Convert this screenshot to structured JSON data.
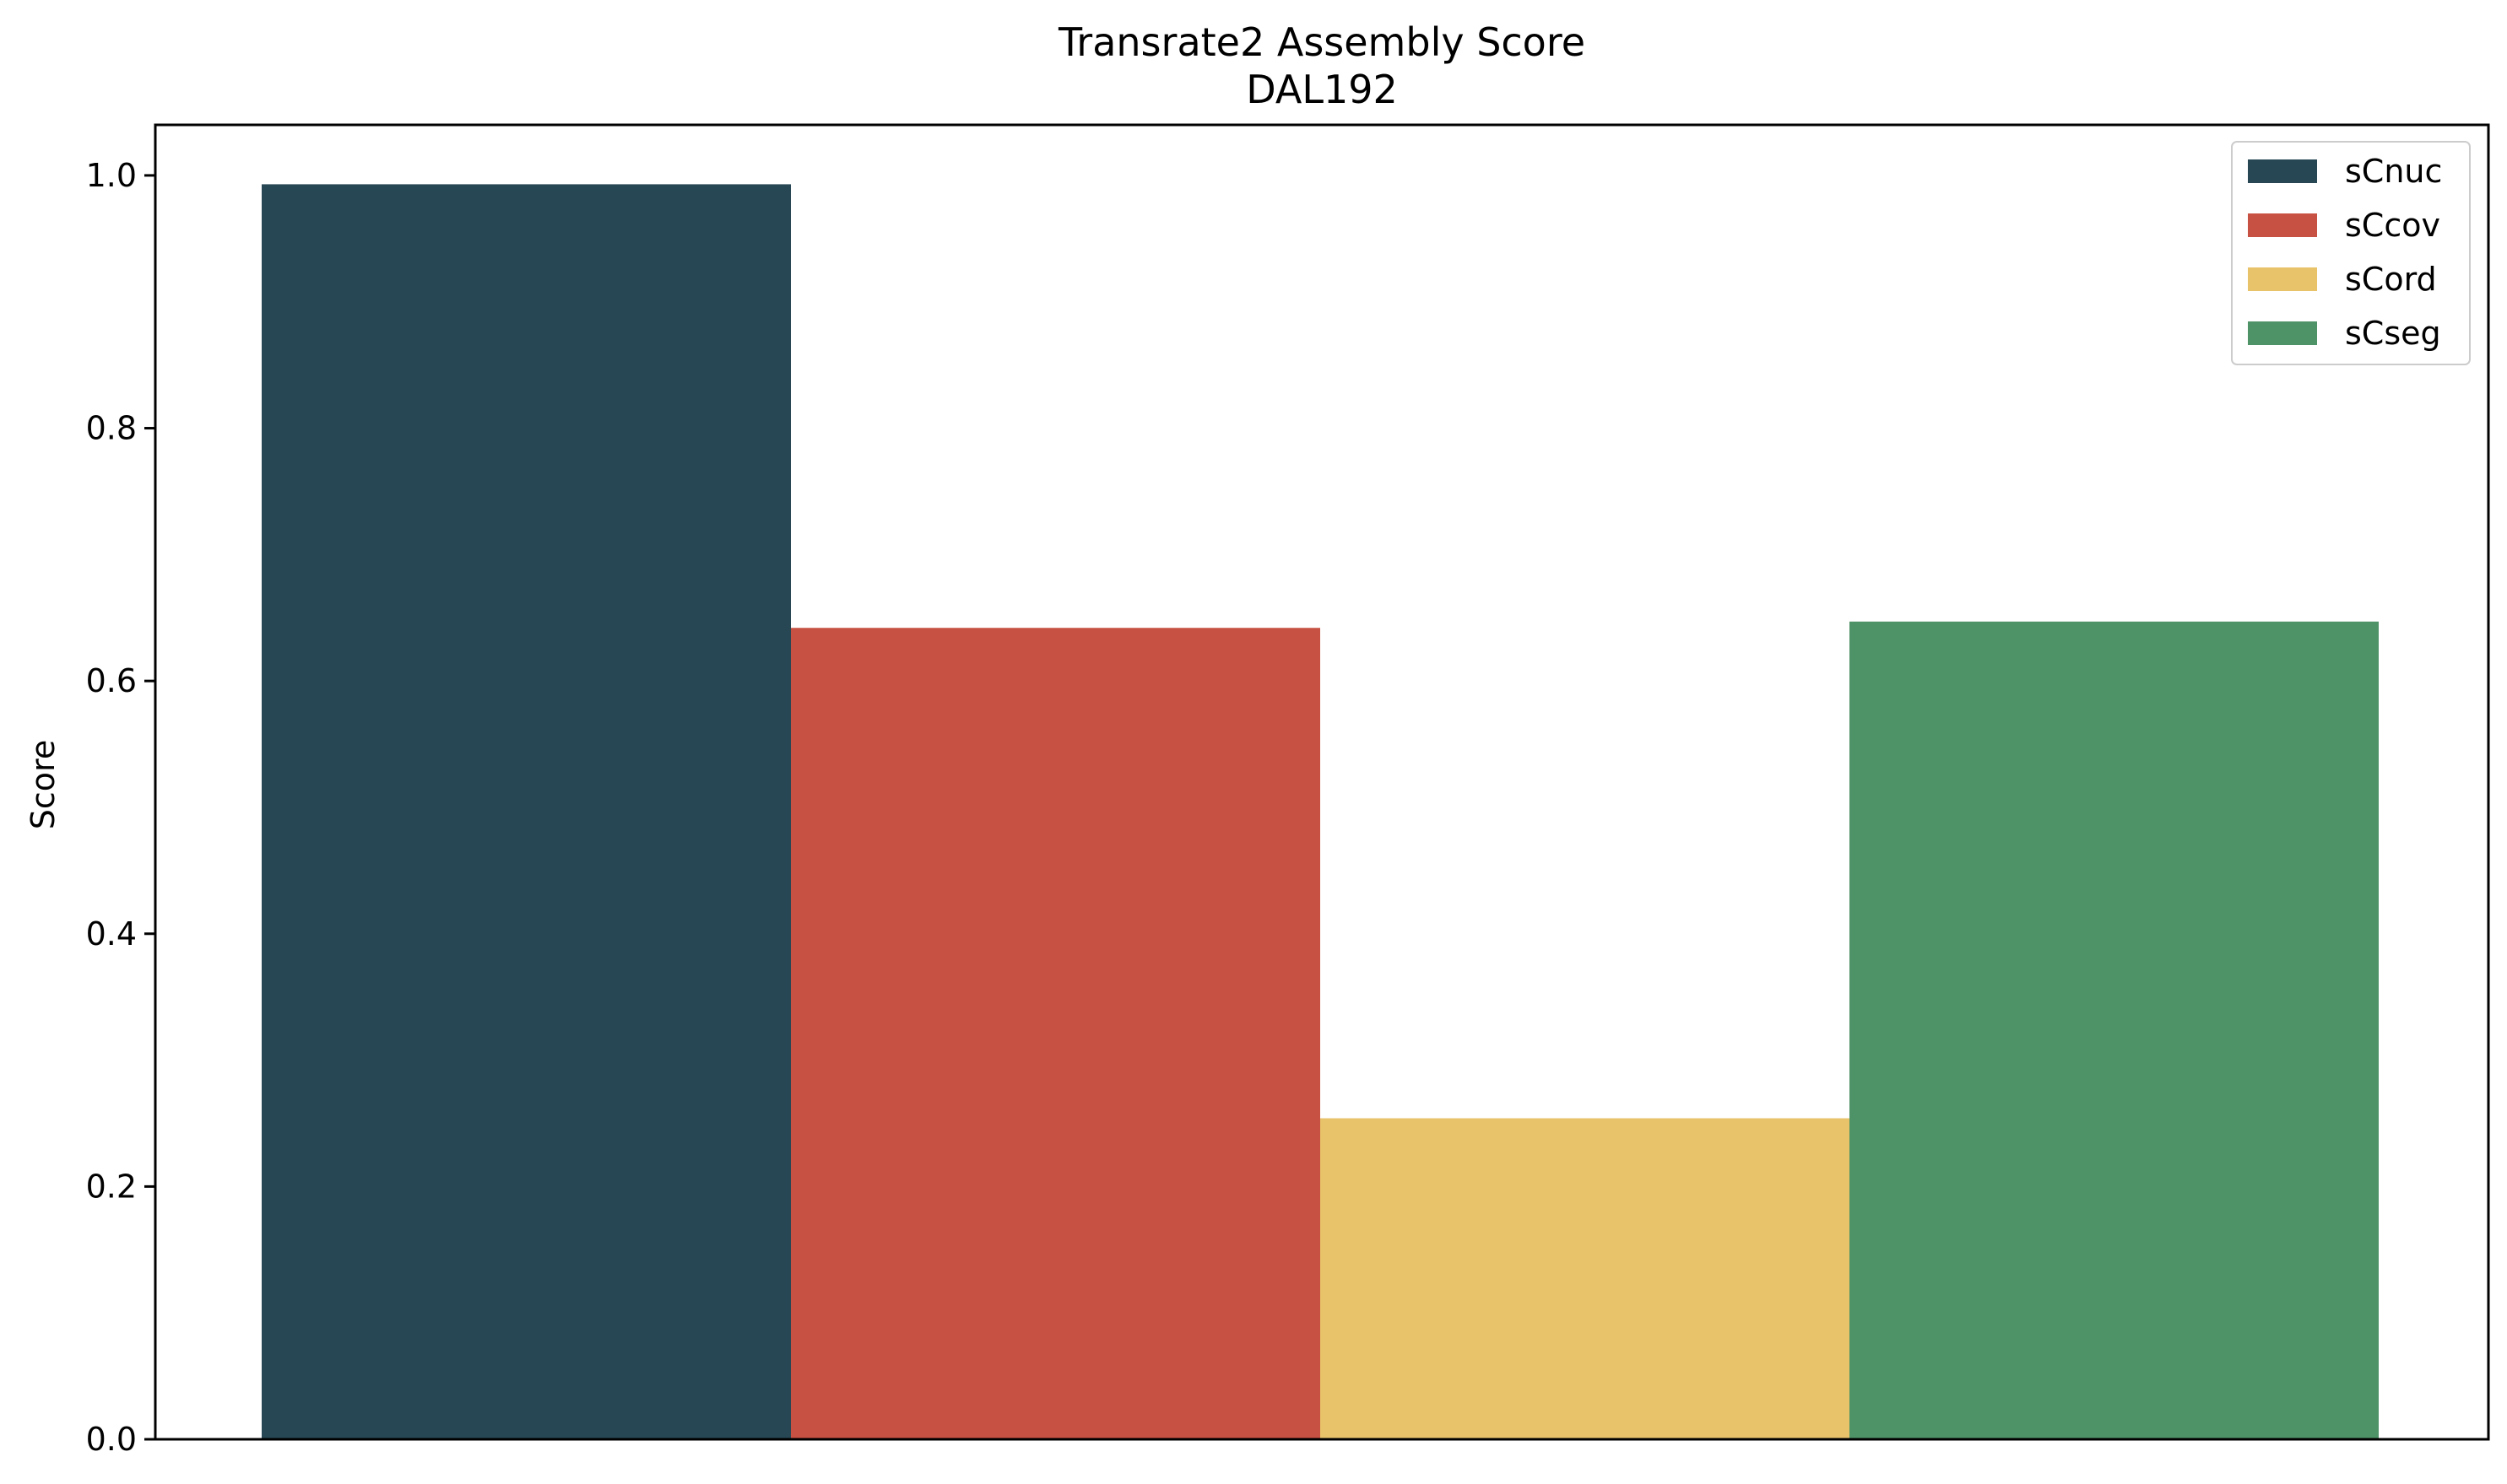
{
  "chart_data": {
    "type": "bar",
    "title": "Transrate2 Assembly Score",
    "subtitle": "DAL192",
    "xlabel": "",
    "ylabel": "Score",
    "ylim": [
      0,
      1.04
    ],
    "yticks": [
      0.0,
      0.2,
      0.4,
      0.6,
      0.8,
      1.0
    ],
    "ytick_labels": [
      "0.0",
      "0.2",
      "0.4",
      "0.6",
      "0.8",
      "1.0"
    ],
    "grid": false,
    "legend_position": "top-right",
    "series": [
      {
        "name": "sCnuc",
        "value": 0.993,
        "color": "#284755"
      },
      {
        "name": "sCcov",
        "value": 0.642,
        "color": "#c75142"
      },
      {
        "name": "sCord",
        "value": 0.254,
        "color": "#e8c36a"
      },
      {
        "name": "sCseg",
        "value": 0.647,
        "color": "#4e9267"
      }
    ]
  }
}
